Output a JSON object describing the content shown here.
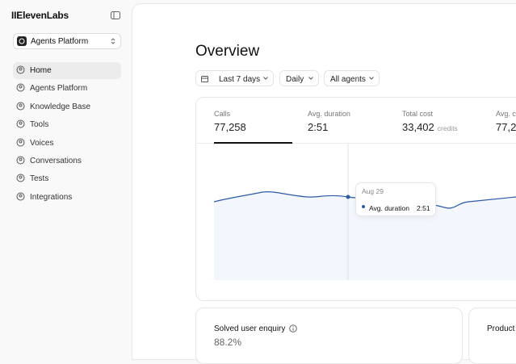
{
  "sidebar": {
    "logo": "IIElevenLabs",
    "workspace": "Agents Platform",
    "nav": [
      "Home",
      "Agents Platform",
      "Knowledge Base",
      "Tools",
      "Voices",
      "Conversations",
      "Tests",
      "Integrations"
    ]
  },
  "main": {
    "title": "Overview",
    "filters": [
      "Last 7 days",
      "Daily",
      "All agents"
    ],
    "metrics": [
      {
        "label": "Calls",
        "value": "77,258"
      },
      {
        "label": "Avg. duration",
        "value": "2:51"
      },
      {
        "label": "Total cost",
        "value": "33,402",
        "unit": "credits"
      },
      {
        "label": "Avg. c",
        "value": "77,2"
      }
    ],
    "tooltip": {
      "date": "Aug 29",
      "label": "Avg. duration",
      "value": "2:51"
    },
    "cards": [
      {
        "title": "Solved user enquiry",
        "value": "88.2%"
      },
      {
        "title": "Product"
      }
    ]
  }
}
